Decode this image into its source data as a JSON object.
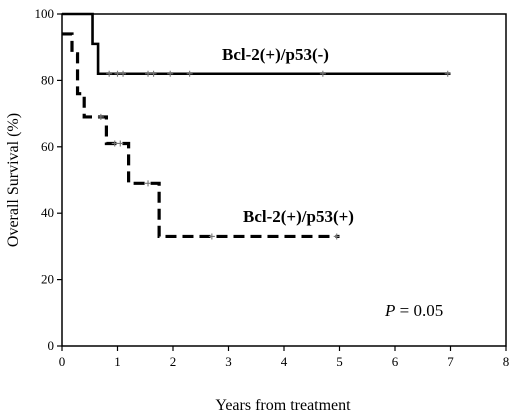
{
  "chart_data": {
    "type": "line",
    "subtype": "kaplan-meier step",
    "xlabel": "Years from treatment",
    "ylabel": "Overall Survival (%)",
    "xlim": [
      0,
      8
    ],
    "ylim": [
      0,
      100
    ],
    "xticks": [
      0,
      1,
      2,
      3,
      4,
      5,
      6,
      7,
      8
    ],
    "yticks": [
      0,
      20,
      40,
      60,
      80,
      100
    ],
    "grid": false,
    "series": [
      {
        "name": "Bcl-2(+)/p53(-)",
        "style": "solid",
        "color": "#000000",
        "steps": [
          {
            "x": 0,
            "y": 100
          },
          {
            "x": 0.55,
            "y": 91
          },
          {
            "x": 0.65,
            "y": 82
          },
          {
            "x": 7.0,
            "y": 82
          }
        ],
        "censor_x": [
          0.85,
          1.0,
          1.1,
          1.55,
          1.65,
          1.95,
          2.3,
          4.7,
          6.95
        ]
      },
      {
        "name": "Bcl-2(+)/p53(+)",
        "style": "dashed",
        "color": "#000000",
        "steps": [
          {
            "x": 0,
            "y": 94
          },
          {
            "x": 0.18,
            "y": 88
          },
          {
            "x": 0.28,
            "y": 76
          },
          {
            "x": 0.4,
            "y": 69
          },
          {
            "x": 0.8,
            "y": 61
          },
          {
            "x": 1.2,
            "y": 49
          },
          {
            "x": 1.75,
            "y": 33
          },
          {
            "x": 5.0,
            "y": 33
          }
        ],
        "censor_x": [
          0.7,
          0.95,
          1.05,
          1.55,
          2.7,
          4.95
        ]
      }
    ],
    "annotations": [
      {
        "text_italic": "P",
        "text": " = 0.05",
        "position": "bottom-right"
      }
    ]
  }
}
